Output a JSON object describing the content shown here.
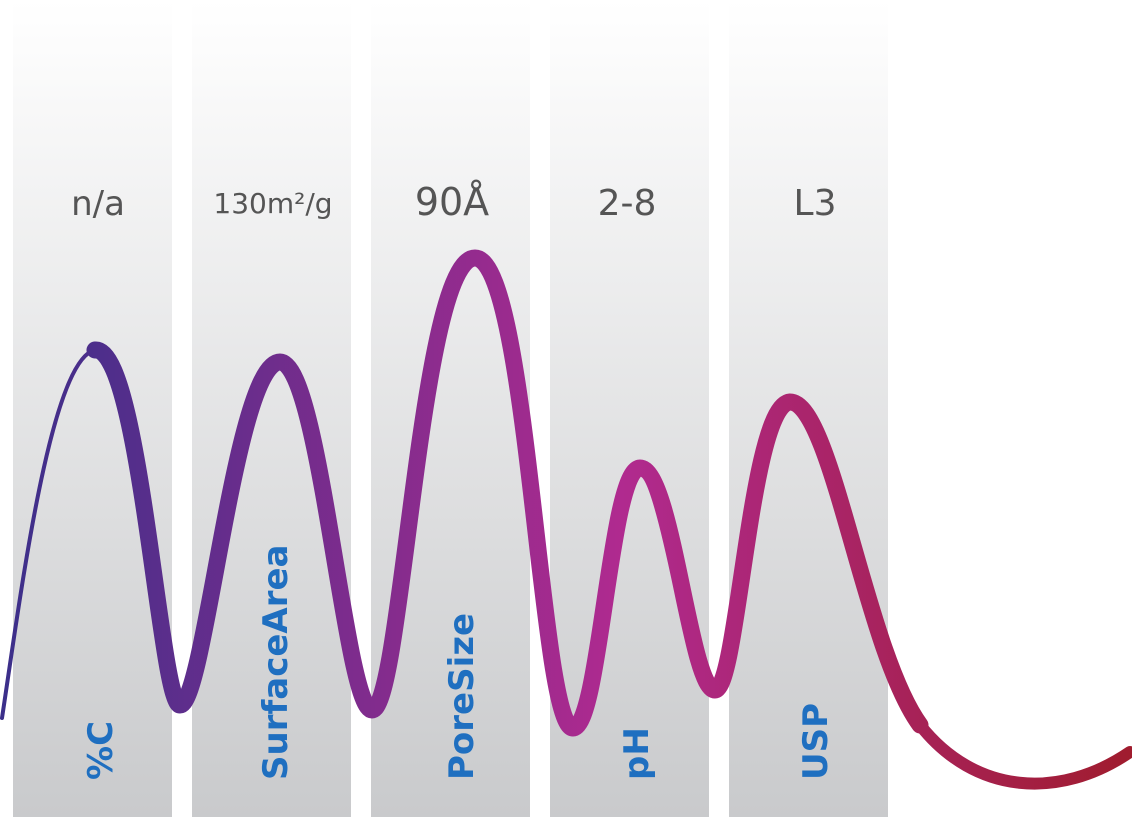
{
  "colors": {
    "curve_start": "#3b2f8a",
    "curve_mid": "#b02a8f",
    "curve_end": "#a01c2e",
    "label": "#1f6fc0",
    "value": "#555555",
    "band_top": "#ffffff",
    "band_bottom": "#c9cacc"
  },
  "columns": [
    {
      "value": "n/a",
      "label": "%C"
    },
    {
      "value": "130m²/g",
      "label": "SurfaceArea"
    },
    {
      "value": "90Å",
      "label": "PoreSize"
    },
    {
      "value": "2-8",
      "label": "pH"
    },
    {
      "value": "L3",
      "label": "USP"
    }
  ]
}
